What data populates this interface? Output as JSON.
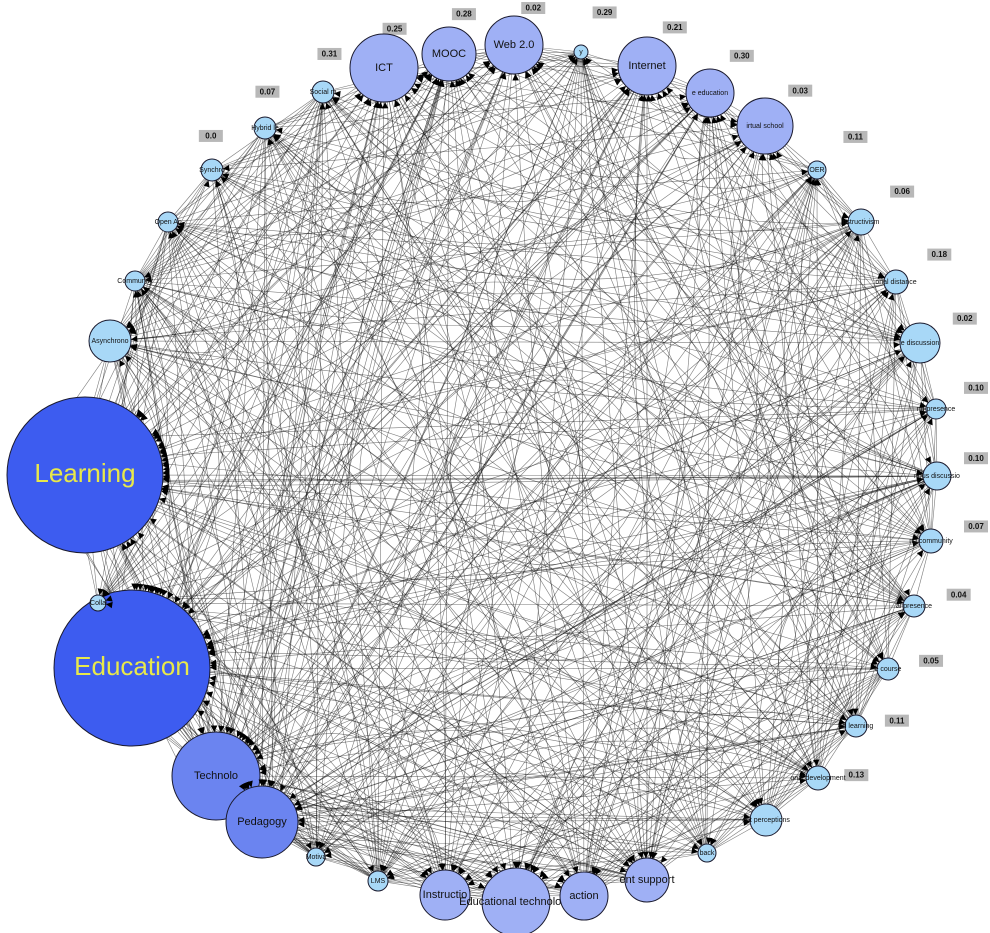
{
  "colors": {
    "large": "#3d5cf0",
    "medium": "#6b84f0",
    "small": "#9fb0f5",
    "tiny": "#a8d8f7",
    "big_label": "#e8e84a",
    "edge": "#111111"
  },
  "nodes": [
    {
      "id": "learning",
      "label": "Learning",
      "tier": "large",
      "weight": ""
    },
    {
      "id": "education",
      "label": "Education",
      "tier": "large",
      "weight": ""
    },
    {
      "id": "technology",
      "label": "Technolo",
      "tier": "medium",
      "weight": ""
    },
    {
      "id": "pedagogy",
      "label": "Pedagogy",
      "tier": "medium",
      "weight": ""
    },
    {
      "id": "motivation",
      "label": "Motiva",
      "tier": "tiny",
      "weight": ""
    },
    {
      "id": "lms",
      "label": "LMS",
      "tier": "tiny",
      "weight": ""
    },
    {
      "id": "instructional",
      "label": "Instructio",
      "tier": "small",
      "weight": ""
    },
    {
      "id": "educational-technology",
      "label": "Educational technology",
      "tier": "small",
      "weight": ""
    },
    {
      "id": "interaction",
      "label": "action",
      "tier": "small",
      "weight": ""
    },
    {
      "id": "student-support",
      "label": "ent support",
      "tier": "small",
      "weight": ""
    },
    {
      "id": "feedback",
      "label": "back",
      "tier": "tiny",
      "weight": ""
    },
    {
      "id": "student-perceptions",
      "label": "ent perceptions",
      "tier": "tiny",
      "weight": ""
    },
    {
      "id": "professional-development",
      "label": "onal development",
      "tier": "tiny",
      "weight": "0.13"
    },
    {
      "id": "blended-learning",
      "label": "ed learning",
      "tier": "tiny",
      "weight": "0.11"
    },
    {
      "id": "online-course",
      "label": "e course",
      "tier": "tiny",
      "weight": "0.05"
    },
    {
      "id": "social-presence",
      "label": "al presence",
      "tier": "tiny",
      "weight": "0.04"
    },
    {
      "id": "learning-community",
      "label": "ng community",
      "tier": "tiny",
      "weight": "0.07"
    },
    {
      "id": "online-discussion",
      "label": "nous discussio",
      "tier": "tiny",
      "weight": "0.10"
    },
    {
      "id": "teaching-presence",
      "label": "ng presence",
      "tier": "tiny",
      "weight": "0.10"
    },
    {
      "id": "online-discussion-2",
      "label": "e discussion",
      "tier": "tiny",
      "weight": "0.02"
    },
    {
      "id": "transactional-distance",
      "label": "onal distance",
      "tier": "tiny",
      "weight": "0.18"
    },
    {
      "id": "constructivism",
      "label": "nstructivism",
      "tier": "tiny",
      "weight": "0.06"
    },
    {
      "id": "oer",
      "label": "OER",
      "tier": "tiny",
      "weight": "0.11"
    },
    {
      "id": "virtual-school",
      "label": "irtual school",
      "tier": "small",
      "weight": "0.03"
    },
    {
      "id": "e-education",
      "label": "e education",
      "tier": "small",
      "weight": "0.30"
    },
    {
      "id": "internet",
      "label": "Internet",
      "tier": "small",
      "weight": "0.21"
    },
    {
      "id": "mobile",
      "label": "y",
      "tier": "tiny",
      "weight": "0.29"
    },
    {
      "id": "web20",
      "label": "Web 2.0",
      "tier": "small",
      "weight": "0.02"
    },
    {
      "id": "mooc",
      "label": "MOOC",
      "tier": "small",
      "weight": "0.28"
    },
    {
      "id": "ict",
      "label": "ICT",
      "tier": "small",
      "weight": "0.25"
    },
    {
      "id": "social-media",
      "label": "Social m",
      "tier": "tiny",
      "weight": "0.31"
    },
    {
      "id": "hybrid-learning",
      "label": "Hybrid le",
      "tier": "tiny",
      "weight": "0.07"
    },
    {
      "id": "synchronous",
      "label": "Synchro",
      "tier": "tiny",
      "weight": "0.0"
    },
    {
      "id": "open-access",
      "label": "Open Ac",
      "tier": "tiny",
      "weight": ""
    },
    {
      "id": "community",
      "label": "Community",
      "tier": "tiny",
      "weight": ""
    },
    {
      "id": "asynchronous",
      "label": "Asynchrono",
      "tier": "tiny",
      "weight": ""
    },
    {
      "id": "collaboration",
      "label": "Colla",
      "tier": "tiny",
      "weight": ""
    }
  ]
}
